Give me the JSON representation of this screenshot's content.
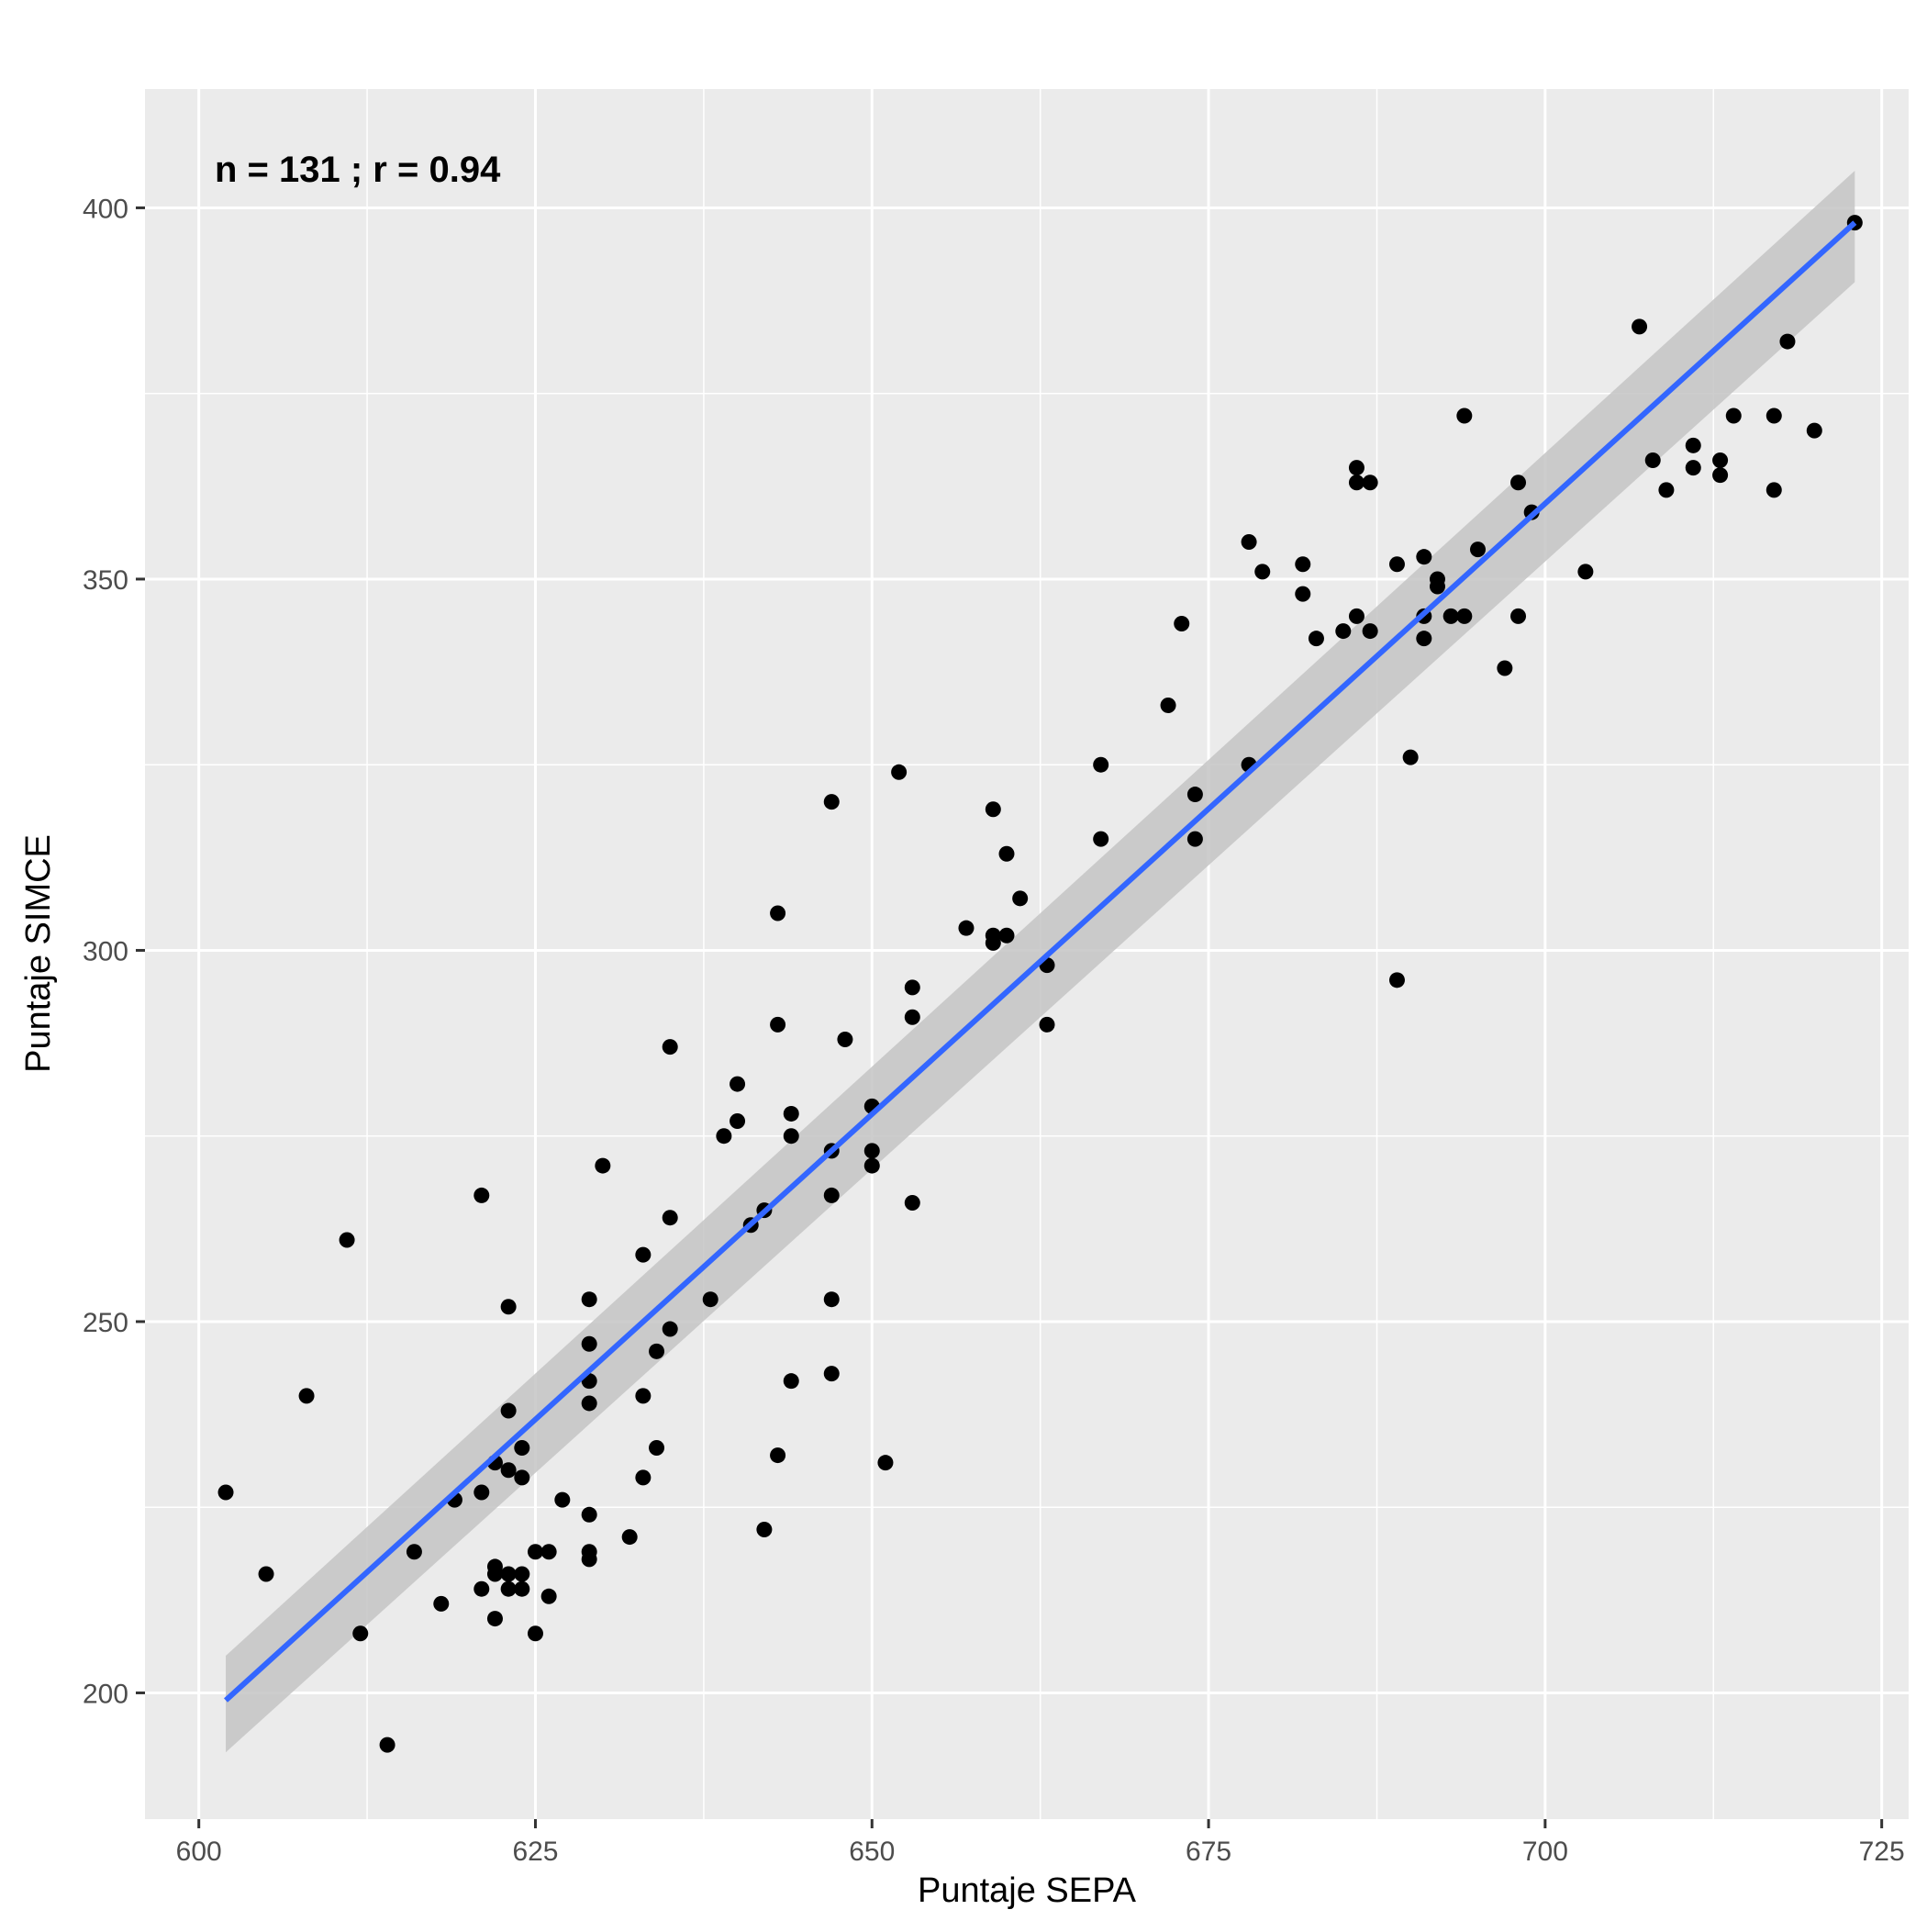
{
  "chart_data": {
    "type": "scatter",
    "title": "",
    "xlabel": "Puntaje SEPA",
    "ylabel": "Puntaje SIMCE",
    "annotation": "n = 131 ;  r = 0.94",
    "xlim": [
      596,
      727
    ],
    "ylim": [
      183,
      416
    ],
    "x_ticks": [
      600,
      625,
      650,
      675,
      700,
      725
    ],
    "y_ticks": [
      200,
      250,
      300,
      350,
      400
    ],
    "x_tick_labels": [
      "600",
      "625",
      "650",
      "675",
      "700",
      "725"
    ],
    "y_tick_labels": [
      "200",
      "250",
      "300",
      "350",
      "400"
    ],
    "grid": true,
    "legend": "none",
    "colors": {
      "panel": "#ebebeb",
      "points": "#000000",
      "fit_line": "#3366ff",
      "confidence_band": "#c4c4c4"
    },
    "fit": {
      "method": "linear",
      "x_start": 602,
      "y_start": 199,
      "x_end": 723,
      "y_end": 398,
      "ci_at_start": [
        192,
        205
      ],
      "ci_at_end": [
        390,
        405
      ]
    },
    "points": [
      {
        "x": 602,
        "y": 227
      },
      {
        "x": 605,
        "y": 216
      },
      {
        "x": 608,
        "y": 240
      },
      {
        "x": 611,
        "y": 261
      },
      {
        "x": 612,
        "y": 208
      },
      {
        "x": 614,
        "y": 193
      },
      {
        "x": 616,
        "y": 219
      },
      {
        "x": 618,
        "y": 212
      },
      {
        "x": 619,
        "y": 226
      },
      {
        "x": 621,
        "y": 267
      },
      {
        "x": 621,
        "y": 227
      },
      {
        "x": 621,
        "y": 214
      },
      {
        "x": 622,
        "y": 231
      },
      {
        "x": 622,
        "y": 217
      },
      {
        "x": 622,
        "y": 216
      },
      {
        "x": 622,
        "y": 210
      },
      {
        "x": 623,
        "y": 252
      },
      {
        "x": 623,
        "y": 238
      },
      {
        "x": 623,
        "y": 230
      },
      {
        "x": 623,
        "y": 216
      },
      {
        "x": 623,
        "y": 214
      },
      {
        "x": 624,
        "y": 233
      },
      {
        "x": 624,
        "y": 229
      },
      {
        "x": 624,
        "y": 216
      },
      {
        "x": 624,
        "y": 214
      },
      {
        "x": 625,
        "y": 219
      },
      {
        "x": 625,
        "y": 208
      },
      {
        "x": 626,
        "y": 219
      },
      {
        "x": 626,
        "y": 213
      },
      {
        "x": 627,
        "y": 226
      },
      {
        "x": 629,
        "y": 253
      },
      {
        "x": 629,
        "y": 247
      },
      {
        "x": 629,
        "y": 242
      },
      {
        "x": 629,
        "y": 239
      },
      {
        "x": 629,
        "y": 224
      },
      {
        "x": 629,
        "y": 219
      },
      {
        "x": 629,
        "y": 218
      },
      {
        "x": 630,
        "y": 271
      },
      {
        "x": 632,
        "y": 221
      },
      {
        "x": 633,
        "y": 259
      },
      {
        "x": 633,
        "y": 240
      },
      {
        "x": 633,
        "y": 229
      },
      {
        "x": 634,
        "y": 246
      },
      {
        "x": 634,
        "y": 233
      },
      {
        "x": 635,
        "y": 287
      },
      {
        "x": 635,
        "y": 264
      },
      {
        "x": 635,
        "y": 249
      },
      {
        "x": 638,
        "y": 253
      },
      {
        "x": 639,
        "y": 275
      },
      {
        "x": 640,
        "y": 282
      },
      {
        "x": 640,
        "y": 277
      },
      {
        "x": 641,
        "y": 263
      },
      {
        "x": 642,
        "y": 265
      },
      {
        "x": 642,
        "y": 222
      },
      {
        "x": 643,
        "y": 305
      },
      {
        "x": 643,
        "y": 290
      },
      {
        "x": 643,
        "y": 232
      },
      {
        "x": 644,
        "y": 278
      },
      {
        "x": 644,
        "y": 275
      },
      {
        "x": 644,
        "y": 242
      },
      {
        "x": 647,
        "y": 320
      },
      {
        "x": 647,
        "y": 273
      },
      {
        "x": 647,
        "y": 267
      },
      {
        "x": 647,
        "y": 253
      },
      {
        "x": 647,
        "y": 243
      },
      {
        "x": 648,
        "y": 288
      },
      {
        "x": 650,
        "y": 279
      },
      {
        "x": 650,
        "y": 273
      },
      {
        "x": 650,
        "y": 271
      },
      {
        "x": 651,
        "y": 231
      },
      {
        "x": 652,
        "y": 324
      },
      {
        "x": 653,
        "y": 295
      },
      {
        "x": 653,
        "y": 291
      },
      {
        "x": 653,
        "y": 266
      },
      {
        "x": 657,
        "y": 303
      },
      {
        "x": 659,
        "y": 319
      },
      {
        "x": 659,
        "y": 302
      },
      {
        "x": 659,
        "y": 301
      },
      {
        "x": 660,
        "y": 313
      },
      {
        "x": 660,
        "y": 302
      },
      {
        "x": 661,
        "y": 307
      },
      {
        "x": 663,
        "y": 298
      },
      {
        "x": 663,
        "y": 290
      },
      {
        "x": 667,
        "y": 325
      },
      {
        "x": 667,
        "y": 315
      },
      {
        "x": 672,
        "y": 333
      },
      {
        "x": 673,
        "y": 344
      },
      {
        "x": 674,
        "y": 321
      },
      {
        "x": 674,
        "y": 315
      },
      {
        "x": 678,
        "y": 355
      },
      {
        "x": 678,
        "y": 325
      },
      {
        "x": 679,
        "y": 351
      },
      {
        "x": 682,
        "y": 352
      },
      {
        "x": 682,
        "y": 348
      },
      {
        "x": 683,
        "y": 342
      },
      {
        "x": 685,
        "y": 343
      },
      {
        "x": 686,
        "y": 365
      },
      {
        "x": 686,
        "y": 363
      },
      {
        "x": 686,
        "y": 345
      },
      {
        "x": 687,
        "y": 363
      },
      {
        "x": 687,
        "y": 343
      },
      {
        "x": 689,
        "y": 352
      },
      {
        "x": 689,
        "y": 296
      },
      {
        "x": 690,
        "y": 326
      },
      {
        "x": 691,
        "y": 353
      },
      {
        "x": 691,
        "y": 345
      },
      {
        "x": 691,
        "y": 342
      },
      {
        "x": 692,
        "y": 350
      },
      {
        "x": 692,
        "y": 349
      },
      {
        "x": 693,
        "y": 345
      },
      {
        "x": 694,
        "y": 372
      },
      {
        "x": 694,
        "y": 345
      },
      {
        "x": 695,
        "y": 354
      },
      {
        "x": 697,
        "y": 338
      },
      {
        "x": 698,
        "y": 363
      },
      {
        "x": 698,
        "y": 345
      },
      {
        "x": 699,
        "y": 359
      },
      {
        "x": 703,
        "y": 351
      },
      {
        "x": 707,
        "y": 384
      },
      {
        "x": 708,
        "y": 366
      },
      {
        "x": 709,
        "y": 362
      },
      {
        "x": 711,
        "y": 368
      },
      {
        "x": 711,
        "y": 365
      },
      {
        "x": 713,
        "y": 366
      },
      {
        "x": 713,
        "y": 364
      },
      {
        "x": 714,
        "y": 372
      },
      {
        "x": 717,
        "y": 372
      },
      {
        "x": 717,
        "y": 362
      },
      {
        "x": 718,
        "y": 382
      },
      {
        "x": 720,
        "y": 370
      },
      {
        "x": 723,
        "y": 398
      }
    ]
  }
}
